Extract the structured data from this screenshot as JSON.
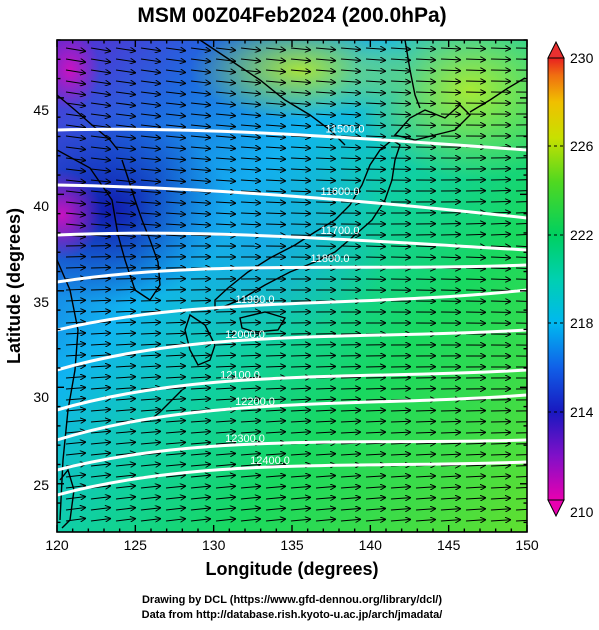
{
  "title": "MSM 00Z04Feb2024 (200.0hPa)",
  "axes": {
    "xlabel": "Longitude (degrees)",
    "ylabel": "Latitude  (degrees)",
    "x_range": [
      120,
      150
    ],
    "y_range": [
      22.5,
      48
    ],
    "x_ticks": [
      "120",
      "125",
      "130",
      "135",
      "140",
      "145",
      "150"
    ],
    "y_ticks": [
      "25",
      "30",
      "35",
      "40",
      "45"
    ]
  },
  "colorbar": {
    "range": [
      210,
      230
    ],
    "labels": [
      "230",
      "226",
      "222",
      "218",
      "214",
      "210"
    ],
    "colors": [
      "#e8008c",
      "#2020c0",
      "#00c8f0",
      "#00d070",
      "#c0e000",
      "#f0f000",
      "#f04020"
    ]
  },
  "contour_labels": [
    "11500.0",
    "11600.0",
    "11700.0",
    "11800.0",
    "11900.0",
    "12000.0",
    "12100.0",
    "12200.0",
    "12300.0",
    "12400.0"
  ],
  "credits": {
    "line1": "Drawing by DCL (https://www.gfd-dennou.org/library/dcl/)",
    "line2": "Data from http://database.rish.kyoto-u.ac.jp/arch/jmadata/"
  }
}
